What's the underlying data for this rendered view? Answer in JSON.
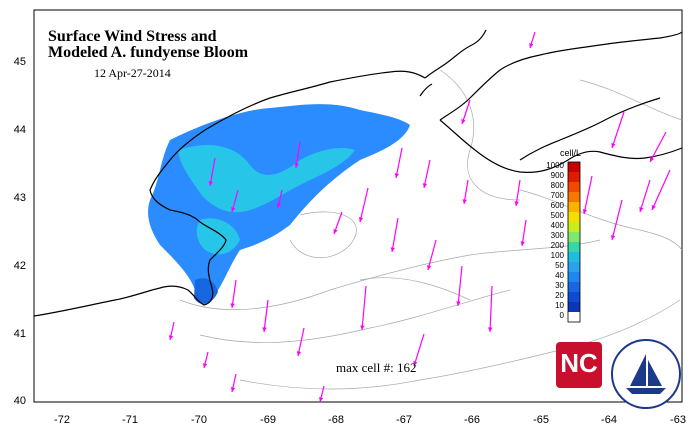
{
  "title_line1": "Surface Wind Stress and",
  "title_line2": "Modeled A. fundyense Bloom",
  "date_label": "12  Apr-27-2014",
  "max_cell_label": "max cell #:  162",
  "colorbar": {
    "unit": "cell/L",
    "labels": [
      "1000",
      "900",
      "800",
      "700",
      "600",
      "500",
      "400",
      "300",
      "200",
      "100",
      "50",
      "40",
      "30",
      "20",
      "10",
      "0"
    ],
    "colors": [
      "#c80000",
      "#e01c00",
      "#ef4a00",
      "#f77800",
      "#fbb300",
      "#f5df00",
      "#c9ec1b",
      "#7fe86a",
      "#35d6a8",
      "#1ebede",
      "#2aa2f0",
      "#1f86f0",
      "#1768e0",
      "#0f4bd0",
      "#0b36b8",
      "#ffffff"
    ]
  },
  "x_axis_ticks": [
    "-72",
    "-71",
    "-70",
    "-69",
    "-68",
    "-67",
    "-66",
    "-65",
    "-64",
    "-63"
  ],
  "y_axis_ticks": [
    "45",
    "44",
    "43",
    "42",
    "41",
    "40"
  ],
  "logos": {
    "left": "NCSU",
    "right": "WHOI"
  },
  "colors": {
    "wind_arrow": "#ff00ff",
    "coast": "#000000",
    "bathymetry": "#a0a0a0",
    "bloom_core": "#2b8cff",
    "bloom_edge": "#27c5e8"
  },
  "map_extent": {
    "lon": [
      -72.3,
      -63.0
    ],
    "lat": [
      40.0,
      45.7
    ]
  }
}
